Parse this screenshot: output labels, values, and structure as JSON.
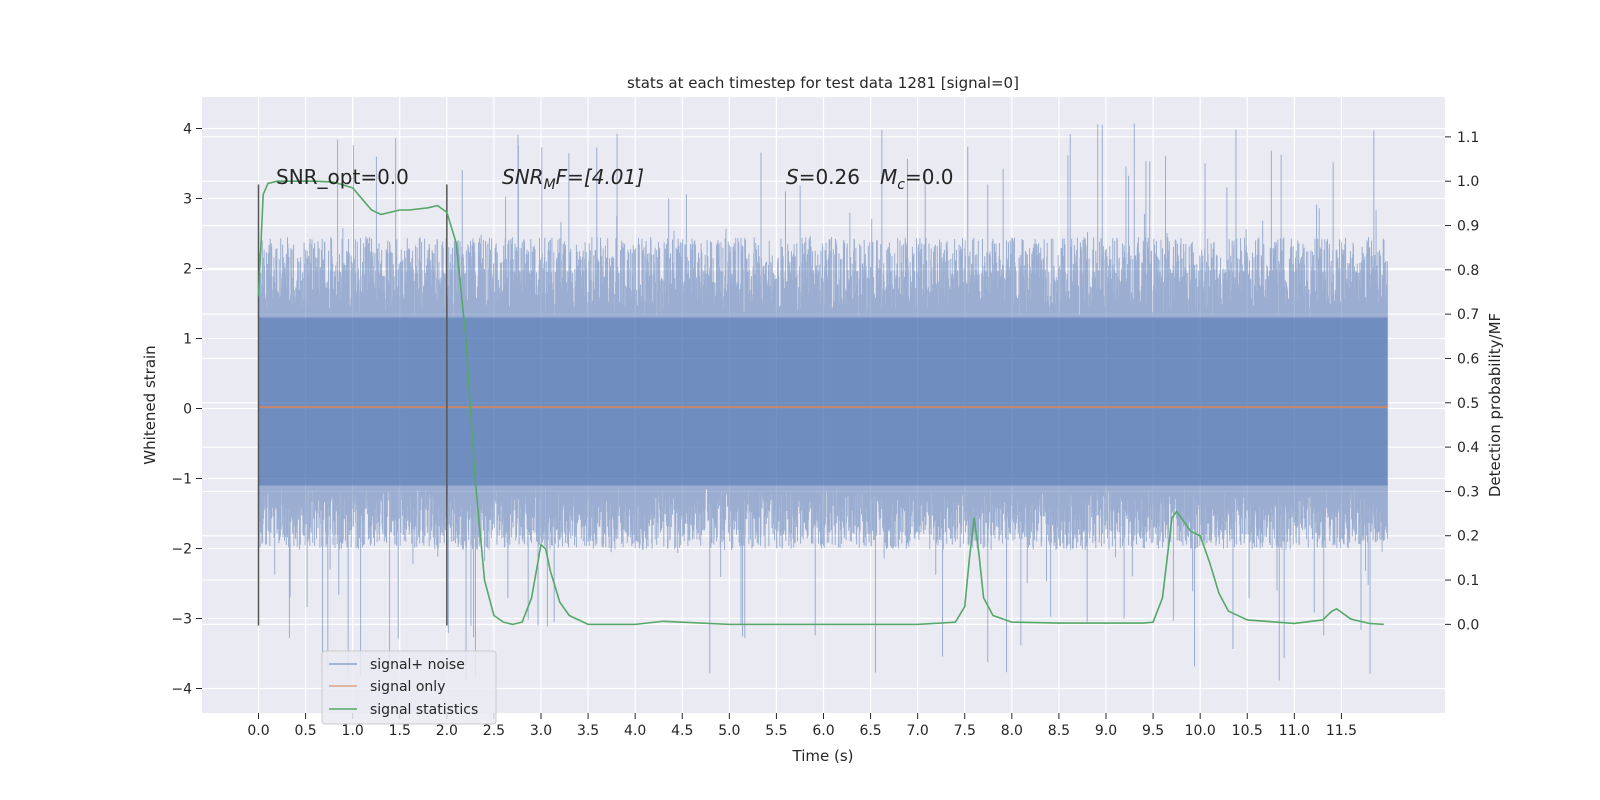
{
  "chart_data": {
    "type": "line",
    "title": "stats at each timestep for test data 1281 [signal=0]",
    "xlabel": "Time (s)",
    "ylabel_left": "Whitened strain",
    "ylabel_right": "Detection probability/MF",
    "xlim": [
      -0.6,
      12.6
    ],
    "ylim_left": [
      -4.35,
      4.45
    ],
    "ylim_right": [
      -0.2,
      1.19
    ],
    "x_ticks": [
      "0.0",
      "0.5",
      "1.0",
      "1.5",
      "2.0",
      "2.5",
      "3.0",
      "3.5",
      "4.0",
      "4.5",
      "5.0",
      "5.5",
      "6.0",
      "6.5",
      "7.0",
      "7.5",
      "8.0",
      "8.5",
      "9.0",
      "9.5",
      "10.0",
      "10.5",
      "11.0",
      "11.5"
    ],
    "y_ticks_left": [
      "4",
      "3",
      "2",
      "1",
      "0",
      "−1",
      "−2",
      "−3",
      "−4"
    ],
    "y_ticks_right": [
      "1.1",
      "1.0",
      "0.9",
      "0.8",
      "0.7",
      "0.6",
      "0.5",
      "0.4",
      "0.3",
      "0.2",
      "0.1",
      "0.0"
    ],
    "grid": true,
    "legend_placement": "lower-left",
    "annotations": {
      "snr_opt": "SNR_opt=0.0",
      "snr_mf_sym": "SNR",
      "snr_mf_sub": "M",
      "snr_mf_rest": "F=[4.01]",
      "s_sym": "S",
      "s_val": "=0.26",
      "mc_sym": "M",
      "mc_sub": "c",
      "mc_val": "=0.0"
    },
    "window_markers": {
      "x": [
        0.0,
        2.0
      ],
      "y_range": [
        -3.1,
        3.2
      ]
    },
    "series": [
      {
        "name": "signal+ noise",
        "color": "#4c72b0",
        "noise_envelope": {
          "x_range": [
            0.0,
            11.99
          ],
          "typical_low": -1.9,
          "typical_high": 2.3,
          "max": 4.1,
          "min": -3.9
        }
      },
      {
        "name": "signal only",
        "color": "#dd8452",
        "x": [
          0.0,
          11.99
        ],
        "y": [
          0.02,
          0.02
        ]
      },
      {
        "name": "signal statistics",
        "color": "#55a868",
        "x": [
          0.0,
          0.05,
          0.1,
          0.2,
          0.4,
          0.6,
          0.8,
          1.0,
          1.1,
          1.2,
          1.3,
          1.4,
          1.5,
          1.6,
          1.8,
          1.9,
          2.0,
          2.1,
          2.2,
          2.3,
          2.4,
          2.5,
          2.6,
          2.7,
          2.8,
          2.9,
          3.0,
          3.05,
          3.1,
          3.2,
          3.3,
          3.5,
          4.0,
          4.3,
          4.5,
          5.0,
          6.0,
          7.0,
          7.4,
          7.5,
          7.55,
          7.6,
          7.65,
          7.7,
          7.8,
          8.0,
          8.5,
          9.0,
          9.4,
          9.5,
          9.6,
          9.7,
          9.75,
          9.8,
          9.9,
          10.0,
          10.1,
          10.2,
          10.3,
          10.5,
          11.0,
          11.3,
          11.4,
          11.45,
          11.6,
          11.8,
          11.95
        ],
        "y": [
          0.74,
          0.97,
          0.995,
          1.0,
          1.0,
          1.0,
          0.998,
          0.985,
          0.96,
          0.935,
          0.925,
          0.93,
          0.935,
          0.935,
          0.94,
          0.945,
          0.93,
          0.86,
          0.65,
          0.33,
          0.1,
          0.02,
          0.005,
          0.0,
          0.005,
          0.06,
          0.18,
          0.17,
          0.12,
          0.05,
          0.02,
          0.0,
          0.0,
          0.007,
          0.005,
          0.0,
          0.0,
          0.0,
          0.005,
          0.04,
          0.15,
          0.24,
          0.16,
          0.06,
          0.02,
          0.005,
          0.003,
          0.003,
          0.003,
          0.005,
          0.06,
          0.24,
          0.255,
          0.24,
          0.21,
          0.2,
          0.14,
          0.07,
          0.03,
          0.01,
          0.002,
          0.01,
          0.03,
          0.035,
          0.012,
          0.002,
          0.0
        ]
      }
    ]
  }
}
